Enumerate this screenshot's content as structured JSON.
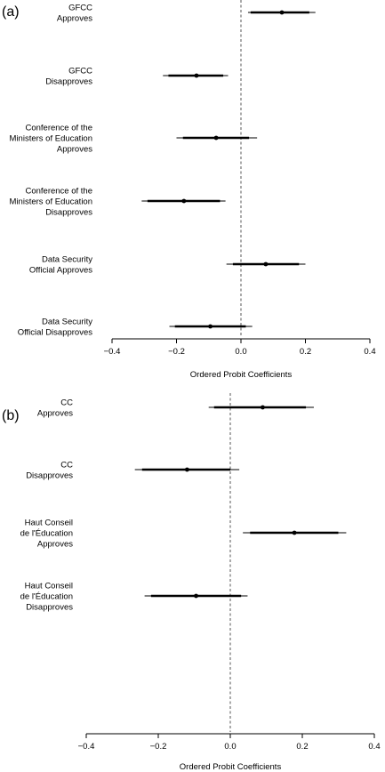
{
  "chart_data": [
    {
      "type": "coefficient-plot",
      "panel_label": "(a)",
      "xlabel": "Ordered Probit Coefficients",
      "xlim": [
        -0.4,
        0.4
      ],
      "xticks": [
        -0.4,
        -0.2,
        0.0,
        0.2,
        0.4
      ],
      "xtick_labels": [
        "−0.4",
        "−0.2",
        "0.0",
        "0.2",
        "0.4"
      ],
      "reference_line": 0,
      "items": [
        {
          "label": [
            "GFCC",
            "Approves"
          ],
          "estimate": 0.127,
          "ci_inner": [
            0.03,
            0.212
          ],
          "ci_outer": [
            0.022,
            0.231
          ]
        },
        {
          "label": [
            "GFCC",
            "Disapproves"
          ],
          "estimate": -0.138,
          "ci_inner": [
            -0.225,
            -0.055
          ],
          "ci_outer": [
            -0.242,
            -0.04
          ]
        },
        {
          "label": [
            "Conference of the",
            "Ministers of Education",
            "Approves"
          ],
          "estimate": -0.077,
          "ci_inner": [
            -0.18,
            0.025
          ],
          "ci_outer": [
            -0.2,
            0.05
          ]
        },
        {
          "label": [
            "Conference of the",
            "Ministers of Education",
            "Disapproves"
          ],
          "estimate": -0.177,
          "ci_inner": [
            -0.29,
            -0.065
          ],
          "ci_outer": [
            -0.308,
            -0.048
          ]
        },
        {
          "label": [
            "Data Security",
            "Official Approves"
          ],
          "estimate": 0.077,
          "ci_inner": [
            -0.025,
            0.18
          ],
          "ci_outer": [
            -0.045,
            0.2
          ]
        },
        {
          "label": [
            "Data Security",
            "Official Disapproves"
          ],
          "estimate": -0.095,
          "ci_inner": [
            -0.205,
            0.015
          ],
          "ci_outer": [
            -0.222,
            0.035
          ]
        }
      ]
    },
    {
      "type": "coefficient-plot",
      "panel_label": "(b)",
      "xlabel": "Ordered Probit Coefficients",
      "xlim": [
        -0.4,
        0.4
      ],
      "xticks": [
        -0.4,
        -0.2,
        0.0,
        0.2,
        0.4
      ],
      "xtick_labels": [
        "−0.4",
        "−0.2",
        "0.0",
        "0.2",
        "0.4"
      ],
      "reference_line": 0,
      "items": [
        {
          "label": [
            "CC",
            "Approves"
          ],
          "estimate": 0.09,
          "ci_inner": [
            -0.045,
            0.21
          ],
          "ci_outer": [
            -0.06,
            0.232
          ]
        },
        {
          "label": [
            "CC",
            "Disapproves"
          ],
          "estimate": -0.12,
          "ci_inner": [
            -0.245,
            0.0
          ],
          "ci_outer": [
            -0.265,
            0.025
          ]
        },
        {
          "label": [
            "Haut Conseil",
            "de l'Éducation",
            "Approves"
          ],
          "estimate": 0.178,
          "ci_inner": [
            0.055,
            0.3
          ],
          "ci_outer": [
            0.035,
            0.322
          ]
        },
        {
          "label": [
            "Haut Conseil",
            "de l'Éducation",
            "Disapproves"
          ],
          "estimate": -0.095,
          "ci_inner": [
            -0.22,
            0.03
          ],
          "ci_outer": [
            -0.238,
            0.048
          ]
        }
      ]
    }
  ]
}
